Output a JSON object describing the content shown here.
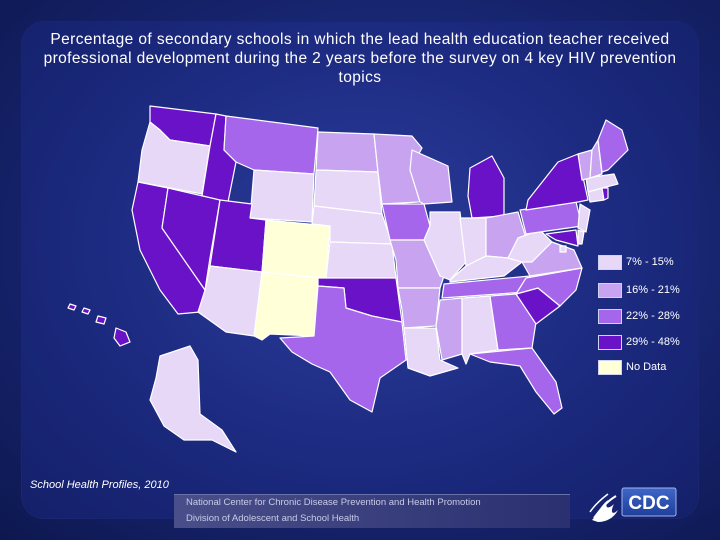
{
  "title": "Percentage of secondary schools in which the lead health education teacher received professional development during the 2 years before the survey on 4 key HIV prevention topics",
  "legend": [
    {
      "label": "7% - 15%",
      "color": "#e8d8f8"
    },
    {
      "label": "16% - 21%",
      "color": "#c8a4f0"
    },
    {
      "label": "22% - 28%",
      "color": "#a566ec"
    },
    {
      "label": "29% - 48%",
      "color": "#6a12c8"
    },
    {
      "label": "No Data",
      "color": "#ffffd8"
    }
  ],
  "colors": {
    "lightest": "#e8d8f8",
    "light": "#c8a4f0",
    "medium": "#a566ec",
    "dark": "#6a12c8",
    "nodata": "#ffffd8",
    "border": "#ffffff"
  },
  "source": "School Health Profiles, 2010",
  "footer": {
    "line1": "National Center for Chronic Disease Prevention and Health Promotion",
    "line2": "Division of Adolescent and School Health"
  },
  "logo": {
    "icon": "hhs-eagle-icon",
    "text": "CDC"
  }
}
